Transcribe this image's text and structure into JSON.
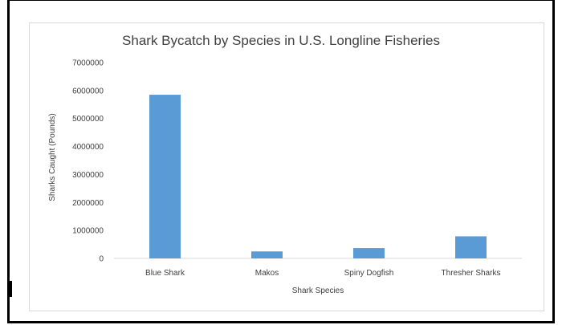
{
  "chart_data": {
    "type": "bar",
    "title": "Shark Bycatch by Species in U.S. Longline Fisheries",
    "xlabel": "Shark Species",
    "ylabel": "Sharks Caught (Pounds)",
    "categories": [
      "Blue Shark",
      "Makos",
      "Spiny Dogfish",
      "Thresher Sharks"
    ],
    "values": [
      5850000,
      250000,
      370000,
      790000
    ],
    "ylim": [
      0,
      7000000
    ],
    "yticks": [
      "0",
      "1000000",
      "2000000",
      "3000000",
      "4000000",
      "5000000",
      "6000000",
      "7000000"
    ],
    "grid": false,
    "legend": "none",
    "colors": {
      "bar": "#5b9bd5",
      "axis": "#d9d9d9",
      "text": "#404040",
      "title": "#404040"
    }
  }
}
